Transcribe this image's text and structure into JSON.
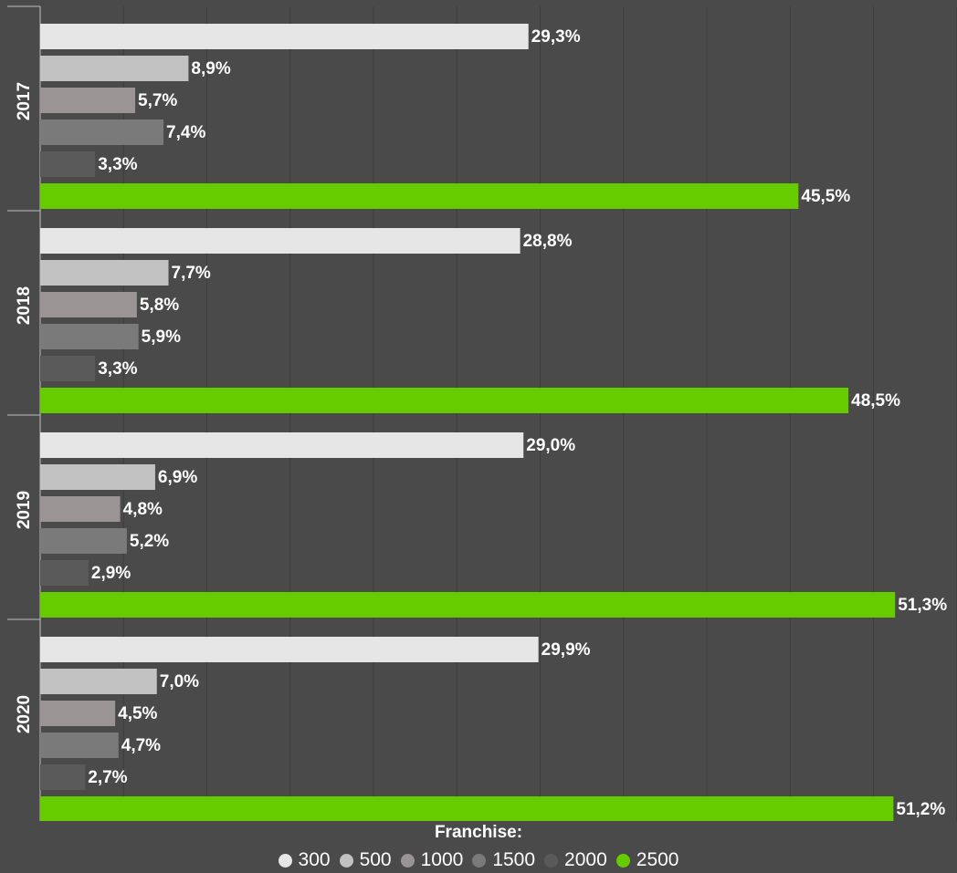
{
  "chart_data": {
    "type": "bar",
    "orientation": "horizontal",
    "categories": [
      "2017",
      "2018",
      "2019",
      "2020"
    ],
    "series": [
      {
        "name": "300",
        "color": "#e6e6e6",
        "values": [
          29.3,
          28.8,
          29.0,
          29.9
        ],
        "labels": [
          "29,3%",
          "28,8%",
          "29,0%",
          "29,9%"
        ]
      },
      {
        "name": "500",
        "color": "#c2c2c2",
        "values": [
          8.9,
          7.7,
          6.9,
          7.0
        ],
        "labels": [
          "8,9%",
          "7,7%",
          "6,9%",
          "7,0%"
        ]
      },
      {
        "name": "1000",
        "color": "#9a9494",
        "values": [
          5.7,
          5.8,
          4.8,
          4.5
        ],
        "labels": [
          "5,7%",
          "5,8%",
          "4,8%",
          "4,5%"
        ]
      },
      {
        "name": "1500",
        "color": "#7a7a7a",
        "values": [
          7.4,
          5.9,
          5.2,
          4.7
        ],
        "labels": [
          "7,4%",
          "5,9%",
          "5,2%",
          "4,7%"
        ]
      },
      {
        "name": "2000",
        "color": "#5a5a5a",
        "values": [
          3.3,
          3.3,
          2.9,
          2.7
        ],
        "labels": [
          "3,3%",
          "3,3%",
          "2,9%",
          "2,7%"
        ]
      },
      {
        "name": "2500",
        "color": "#66cc00",
        "values": [
          45.5,
          48.5,
          51.3,
          51.2
        ],
        "labels": [
          "45,5%",
          "48,5%",
          "51,3%",
          "51,2%"
        ]
      }
    ],
    "xlim": [
      0,
      55
    ],
    "grid": true,
    "legend_title": "Franchise:",
    "legend_position": "bottom"
  }
}
